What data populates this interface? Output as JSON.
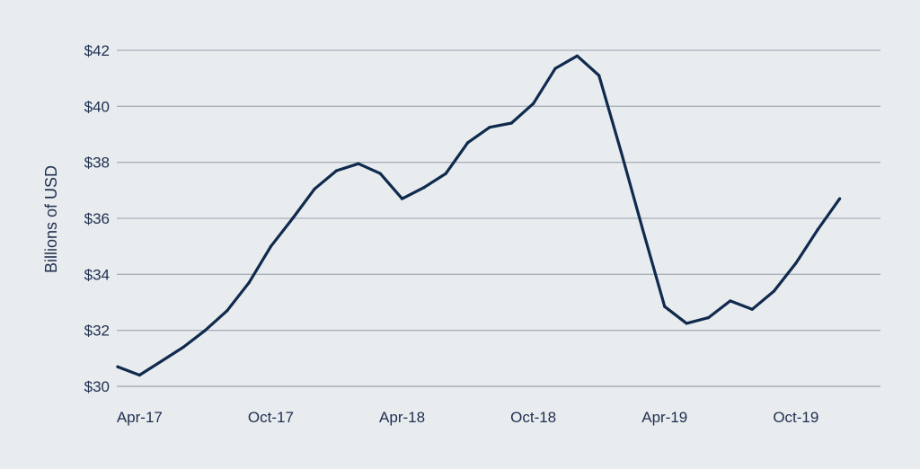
{
  "chart_data": {
    "type": "line",
    "title": "",
    "xlabel": "",
    "ylabel": "Billions of USD",
    "ylim": [
      30,
      42
    ],
    "yticks": [
      30,
      32,
      34,
      36,
      38,
      40,
      42
    ],
    "ytick_labels": [
      "$30",
      "$32",
      "$34",
      "$36",
      "$38",
      "$40",
      "$42"
    ],
    "xtick_labels": [
      "Apr-17",
      "Oct-17",
      "Apr-18",
      "Oct-18",
      "Apr-19",
      "Oct-19"
    ],
    "xtick_dates": [
      "2017-04",
      "2017-10",
      "2018-04",
      "2018-10",
      "2019-04",
      "2019-10"
    ],
    "grid": "horizontal",
    "line_color": "#0f2a4d",
    "grid_color": "#a9b0ba",
    "text_color": "#1d2e4f",
    "series": [
      {
        "x": [
          "2017-03",
          "2017-04",
          "2017-05",
          "2017-06",
          "2017-07",
          "2017-08",
          "2017-09",
          "2017-10",
          "2017-11",
          "2017-12",
          "2018-01",
          "2018-02",
          "2018-03",
          "2018-04",
          "2018-05",
          "2018-06",
          "2018-07",
          "2018-08",
          "2018-09",
          "2018-10",
          "2018-11",
          "2018-12",
          "2019-01",
          "2019-02",
          "2019-03",
          "2019-04",
          "2019-05",
          "2019-06",
          "2019-07",
          "2019-08",
          "2019-09",
          "2019-10",
          "2019-11",
          "2019-12"
        ],
        "values": [
          30.7,
          30.4,
          30.9,
          31.4,
          32.0,
          32.7,
          33.7,
          35.0,
          36.0,
          37.05,
          37.7,
          37.95,
          37.6,
          36.7,
          37.1,
          37.6,
          38.7,
          39.25,
          39.4,
          40.1,
          41.35,
          41.8,
          41.1,
          38.4,
          35.6,
          32.85,
          32.25,
          32.45,
          33.05,
          32.75,
          33.4,
          34.4,
          35.6,
          36.7
        ]
      }
    ]
  }
}
